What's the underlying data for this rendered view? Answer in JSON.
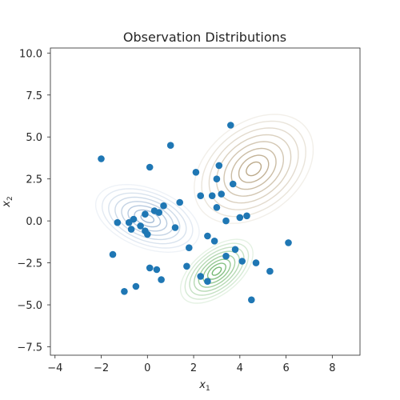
{
  "chart_data": {
    "type": "scatter",
    "title": "Observation Distributions",
    "xlabel": "x",
    "xlabel_sub": "1",
    "ylabel": "x",
    "ylabel_sub": "2",
    "xlim": [
      -4.2,
      9.2
    ],
    "ylim": [
      -8.0,
      10.3
    ],
    "xticks": [
      -4,
      -2,
      0,
      2,
      4,
      6,
      8
    ],
    "yticks": [
      -7.5,
      -5.0,
      -2.5,
      0.0,
      2.5,
      5.0,
      7.5,
      10.0
    ],
    "ytick_labels": [
      "−7.5",
      "−5.0",
      "−2.5",
      "0.0",
      "2.5",
      "5.0",
      "7.5",
      "10.0"
    ],
    "xtick_labels": [
      "−4",
      "−2",
      "0",
      "2",
      "4",
      "6",
      "8"
    ],
    "grid": false,
    "point_color": "#1f77b4",
    "points": [
      {
        "x": -2.0,
        "y": 3.7
      },
      {
        "x": 1.0,
        "y": 4.5
      },
      {
        "x": 3.6,
        "y": 5.7
      },
      {
        "x": 0.1,
        "y": 3.2
      },
      {
        "x": 2.1,
        "y": 2.9
      },
      {
        "x": 3.1,
        "y": 3.3
      },
      {
        "x": 3.0,
        "y": 2.5
      },
      {
        "x": 3.7,
        "y": 2.2
      },
      {
        "x": 2.3,
        "y": 1.5
      },
      {
        "x": 2.8,
        "y": 1.5
      },
      {
        "x": 3.2,
        "y": 1.6
      },
      {
        "x": 3.0,
        "y": 0.8
      },
      {
        "x": 1.4,
        "y": 1.1
      },
      {
        "x": 0.7,
        "y": 0.9
      },
      {
        "x": 0.5,
        "y": 0.5
      },
      {
        "x": 0.3,
        "y": 0.6
      },
      {
        "x": -0.1,
        "y": 0.4
      },
      {
        "x": -0.6,
        "y": 0.1
      },
      {
        "x": -0.8,
        "y": -0.1
      },
      {
        "x": -1.3,
        "y": -0.1
      },
      {
        "x": -0.7,
        "y": -0.5
      },
      {
        "x": -0.3,
        "y": -0.3
      },
      {
        "x": -0.1,
        "y": -0.6
      },
      {
        "x": 0.0,
        "y": -0.8
      },
      {
        "x": 1.2,
        "y": -0.4
      },
      {
        "x": 3.4,
        "y": 0.0
      },
      {
        "x": 4.0,
        "y": 0.2
      },
      {
        "x": 4.3,
        "y": 0.3
      },
      {
        "x": 6.1,
        "y": -1.3
      },
      {
        "x": 2.6,
        "y": -0.9
      },
      {
        "x": 2.9,
        "y": -1.2
      },
      {
        "x": 1.8,
        "y": -1.6
      },
      {
        "x": 3.8,
        "y": -1.7
      },
      {
        "x": 3.4,
        "y": -2.1
      },
      {
        "x": 4.1,
        "y": -2.4
      },
      {
        "x": 4.7,
        "y": -2.5
      },
      {
        "x": 1.7,
        "y": -2.7
      },
      {
        "x": 5.3,
        "y": -3.0
      },
      {
        "x": 0.1,
        "y": -2.8
      },
      {
        "x": 0.4,
        "y": -2.9
      },
      {
        "x": 2.3,
        "y": -3.3
      },
      {
        "x": 2.6,
        "y": -3.6
      },
      {
        "x": 0.6,
        "y": -3.5
      },
      {
        "x": -0.5,
        "y": -3.9
      },
      {
        "x": -1.0,
        "y": -4.2
      },
      {
        "x": 4.5,
        "y": -4.7
      },
      {
        "x": -1.5,
        "y": -2.0
      }
    ],
    "distributions": [
      {
        "color": "#b8a584",
        "center": [
          4.6,
          3.1
        ],
        "sx": 1.15,
        "sy": 1.45,
        "rho": 0.35
      },
      {
        "color": "#9fb8d4",
        "center": [
          0.0,
          0.15
        ],
        "sx": 1.0,
        "sy": 0.9,
        "rho": -0.4
      },
      {
        "color": "#6fb56b",
        "center": [
          3.0,
          -3.0
        ],
        "sx": 0.7,
        "sy": 0.85,
        "rho": 0.55
      }
    ]
  }
}
